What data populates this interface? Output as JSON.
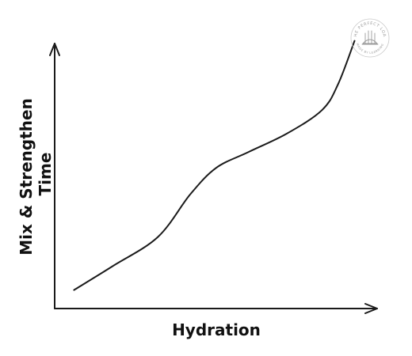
{
  "chart_data": {
    "type": "line",
    "title": "",
    "xlabel": "Hydration",
    "ylabel_lines": [
      "Mix & Strengthen",
      "Time"
    ],
    "ticks": "none",
    "grid": false,
    "legend": "none",
    "xlim": [
      0,
      100
    ],
    "ylim": [
      0,
      100
    ],
    "series": [
      {
        "x": [
          6,
          18,
          32,
          42,
          50,
          60,
          72,
          83,
          88,
          93
        ],
        "y": [
          7,
          16,
          27,
          43,
          53,
          59,
          66,
          75,
          85,
          101
        ]
      }
    ],
    "line_color": "#1a1a1a",
    "axis_color": "#1a1a1a"
  },
  "logo": {
    "ring_text": "THE PERFECT LOAF",
    "sub_text": "MADE BY LEARNING",
    "color": "#9a9a9a",
    "icon": "wheat-bread-icon"
  }
}
